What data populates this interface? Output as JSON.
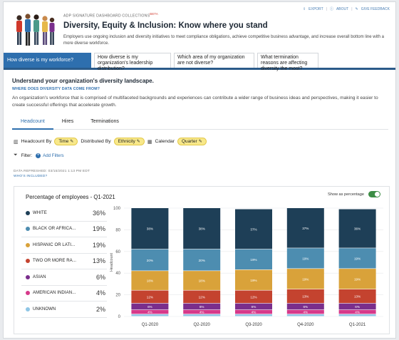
{
  "top_links": {
    "export": "EXPORT",
    "about": "ABOUT",
    "feedback": "GIVE FEEDBACK",
    "separator": "|"
  },
  "header": {
    "collection": "ADP SIGNATURE DASHBOARD COLLECTIONS",
    "beta": "BETA",
    "title": "Diversity, Equity & Inclusion: Know where you stand",
    "description": "Employers use ongoing inclusion and diversity initiatives to meet compliance obligations, achieve competitive business advantage, and increase overall bottom line with a more diverse workforce."
  },
  "tabs": [
    {
      "label": "How diverse is my workforce?",
      "active": true
    },
    {
      "label": "How diverse is my organization's leadership distribution?",
      "active": false
    },
    {
      "label": "Which area of my organization are not diverse?",
      "active": false
    },
    {
      "label": "What termination reasons are affecting diversity the most?",
      "active": false
    }
  ],
  "section": {
    "heading": "Understand your organization's diversity landscape.",
    "data_link": "WHERE DOES DIVERSITY DATA COME FROM?",
    "intro": "An organization's workforce that is comprised of multifaceted backgrounds and experiences can contribute a wider range of business ideas and perspectives, making it easier to create successful offerings that accelerate growth."
  },
  "subtabs": [
    {
      "label": "Headcount",
      "active": true
    },
    {
      "label": "Hires",
      "active": false
    },
    {
      "label": "Terminations",
      "active": false
    }
  ],
  "controls": {
    "headcount_by_label": "Headcount By",
    "headcount_by_value": "Time",
    "distributed_by_label": "Distributed By",
    "distributed_by_value": "Ethnicity",
    "calendar_label": "Calendar",
    "calendar_value": "Quarter",
    "filter_label": "Filter:",
    "add_filters": "Add Filters"
  },
  "meta": {
    "refreshed": "DATA REFRESHED: 03/15/2021 1:13 PM EDT",
    "whos_included": "WHO'S INCLUDED?"
  },
  "chart": {
    "title": "Percentage of employees - Q1-2021",
    "toggle_label": "Show as percentage",
    "toggle_on": true,
    "legend": [
      {
        "name": "WHITE",
        "value": "36%",
        "color": "#1e3f57"
      },
      {
        "name": "BLACK OR AFRICA...",
        "value": "19%",
        "color": "#4d8db0"
      },
      {
        "name": "HISPANIC OR LATI...",
        "value": "19%",
        "color": "#d9a23a"
      },
      {
        "name": "TWO OR MORE RA...",
        "value": "13%",
        "color": "#c4432f"
      },
      {
        "name": "ASIAN",
        "value": "6%",
        "color": "#7a2e8c"
      },
      {
        "name": "AMERICAN INDIAN...",
        "value": "4%",
        "color": "#d6398a"
      },
      {
        "name": "UNKNOWN",
        "value": "2%",
        "color": "#8fc6e6"
      }
    ]
  },
  "chart_data": {
    "type": "bar",
    "stacked": true,
    "categories": [
      "Q1-2020",
      "Q2-2020",
      "Q3-2020",
      "Q4-2020",
      "Q1-2021"
    ],
    "ylabel": "Headcount",
    "ylim": [
      0,
      100
    ],
    "yticks": [
      0,
      20,
      40,
      60,
      80,
      100
    ],
    "series": [
      {
        "name": "UNKNOWN",
        "color": "#8fc6e6",
        "values": [
          2,
          2,
          2,
          2,
          2
        ],
        "labels": [
          "",
          "",
          "",
          "",
          ""
        ]
      },
      {
        "name": "AMERICAN INDIAN...",
        "color": "#d6398a",
        "values": [
          4,
          4,
          4,
          4,
          4
        ],
        "labels": [
          "4%",
          "4%",
          "4%",
          "4%",
          "4%"
        ]
      },
      {
        "name": "ASIAN",
        "color": "#7a2e8c",
        "values": [
          6,
          6,
          6,
          6,
          6
        ],
        "labels": [
          "6%",
          "6%",
          "6%",
          "6%",
          "6%"
        ]
      },
      {
        "name": "TWO OR MORE RA...",
        "color": "#c4432f",
        "values": [
          12,
          12,
          12,
          13,
          13
        ],
        "labels": [
          "12%",
          "12%",
          "12%",
          "13%",
          "13%"
        ]
      },
      {
        "name": "HISPANIC OR LATI...",
        "color": "#d9a23a",
        "values": [
          18,
          18,
          19,
          19,
          19
        ],
        "labels": [
          "18%",
          "18%",
          "19%",
          "19%",
          "19%"
        ]
      },
      {
        "name": "BLACK OR AFRICA...",
        "color": "#4d8db0",
        "values": [
          20,
          20,
          19,
          19,
          19
        ],
        "labels": [
          "20%",
          "20%",
          "19%",
          "19%",
          "19%"
        ]
      },
      {
        "name": "WHITE",
        "color": "#1e3f57",
        "values": [
          38,
          38,
          37,
          37,
          36
        ],
        "labels": [
          "38%",
          "38%",
          "37%",
          "37%",
          "36%"
        ]
      }
    ]
  }
}
